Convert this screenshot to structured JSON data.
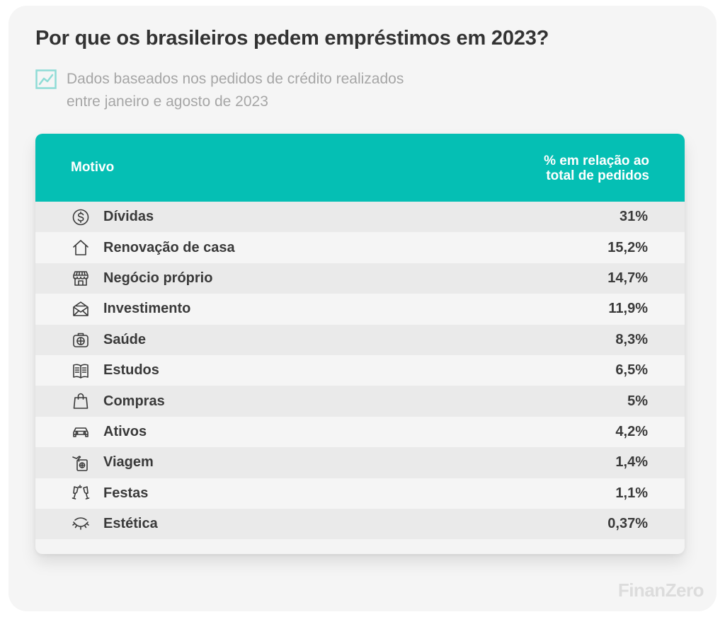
{
  "title": "Por que os brasileiros pedem empréstimos em 2023?",
  "subtitle_line1": "Dados baseados nos pedidos de crédito realizados",
  "subtitle_line2": "entre janeiro e agosto de 2023",
  "header": {
    "motivo": "Motivo",
    "pct_line1": "% em relação ao",
    "pct_line2": "total de pedidos"
  },
  "rows": [
    {
      "icon": "dollar-coin-icon",
      "label": "Dívidas",
      "value": "31%"
    },
    {
      "icon": "house-icon",
      "label": "Renovação de casa",
      "value": "15,2%"
    },
    {
      "icon": "storefront-icon",
      "label": "Negócio próprio",
      "value": "14,7%"
    },
    {
      "icon": "envelope-icon",
      "label": "Investimento",
      "value": "11,9%"
    },
    {
      "icon": "medical-kit-icon",
      "label": "Saúde",
      "value": "8,3%"
    },
    {
      "icon": "open-book-icon",
      "label": "Estudos",
      "value": "6,5%"
    },
    {
      "icon": "shopping-bag-icon",
      "label": "Compras",
      "value": "5%"
    },
    {
      "icon": "car-icon",
      "label": "Ativos",
      "value": "4,2%"
    },
    {
      "icon": "passport-plane-icon",
      "label": "Viagem",
      "value": "1,4%"
    },
    {
      "icon": "champagne-toast-icon",
      "label": "Festas",
      "value": "1,1%"
    },
    {
      "icon": "closed-eye-lashes-icon",
      "label": "Estética",
      "value": "0,37%"
    }
  ],
  "logo": "FinanZero",
  "colors": {
    "header_bg": "#05bfb4",
    "subtitle_icon": "#8fdcd6",
    "text_dark": "#3a3a3a"
  },
  "chart_data": {
    "type": "table",
    "title": "Por que os brasileiros pedem empréstimos em 2023?",
    "columns": [
      "Motivo",
      "% em relação ao total de pedidos"
    ],
    "categories": [
      "Dívidas",
      "Renovação de casa",
      "Negócio próprio",
      "Investimento",
      "Saúde",
      "Estudos",
      "Compras",
      "Ativos",
      "Viagem",
      "Festas",
      "Estética"
    ],
    "values": [
      31,
      15.2,
      14.7,
      11.9,
      8.3,
      6.5,
      5,
      4.2,
      1.4,
      1.1,
      0.37
    ]
  }
}
